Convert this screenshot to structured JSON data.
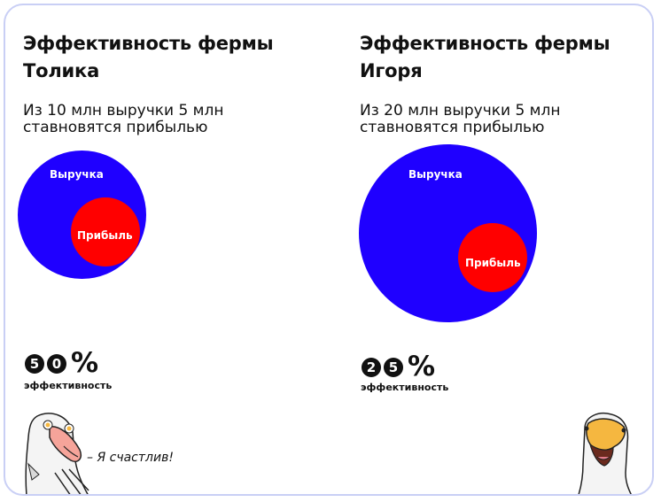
{
  "left": {
    "title_line1": "Эффективность фермы",
    "title_line2": "Толика",
    "subtitle_line1": "Из 10 млн выручки 5 млн",
    "subtitle_line2": "ставновятся прибылью",
    "revenue_label": "Выручка",
    "profit_label": "Прибыль",
    "digits": [
      "5",
      "0"
    ],
    "percent_sign": "%",
    "metric_label": "эффективность",
    "quote": "– Я счастлив!",
    "revenue_value": 10,
    "profit_value": 5,
    "efficiency_percent": 50
  },
  "right": {
    "title_line1": "Эффективность фермы",
    "title_line2": "Игоря",
    "subtitle_line1": "Из 20 млн выручки 5 млн",
    "subtitle_line2": "ставновятся прибылью",
    "revenue_label": "Выручка",
    "profit_label": "Прибыль",
    "digits": [
      "2",
      "5"
    ],
    "percent_sign": "%",
    "metric_label": "эффективность",
    "revenue_value": 20,
    "profit_value": 5,
    "efficiency_percent": 25
  },
  "colors": {
    "revenue": "#1f00ff",
    "profit": "#ff0000",
    "frame": "#c9cff5",
    "goose_beak": "#f5b740"
  }
}
